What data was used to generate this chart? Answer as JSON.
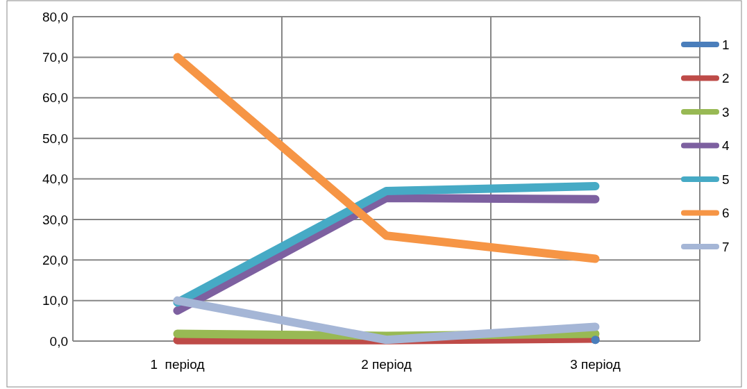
{
  "chart_data": {
    "type": "line",
    "categories": [
      "1  період",
      "2 період",
      "3 період"
    ],
    "series": [
      {
        "name": "1",
        "color": "#4a7ebb",
        "values": [
          null,
          null,
          0.3
        ],
        "marker": "circle"
      },
      {
        "name": "2",
        "color": "#be4b48",
        "values": [
          0.2,
          0.2,
          0.6
        ]
      },
      {
        "name": "3",
        "color": "#98b954",
        "values": [
          1.8,
          1.3,
          1.8
        ]
      },
      {
        "name": "4",
        "color": "#7d60a0",
        "values": [
          7.5,
          35.3,
          35.0
        ]
      },
      {
        "name": "5",
        "color": "#46aac5",
        "values": [
          9.5,
          37.0,
          38.2
        ]
      },
      {
        "name": "6",
        "color": "#f69545",
        "values": [
          70.0,
          26.0,
          20.3
        ]
      },
      {
        "name": "7",
        "color": "#a5b6d6",
        "values": [
          10.0,
          0.3,
          3.5
        ]
      }
    ],
    "ylim": [
      0,
      80
    ],
    "yticks": [
      {
        "value": 0,
        "label": "0,0"
      },
      {
        "value": 10,
        "label": "10,0"
      },
      {
        "value": 20,
        "label": "20,0"
      },
      {
        "value": 30,
        "label": "30,0"
      },
      {
        "value": 40,
        "label": "40,0"
      },
      {
        "value": 50,
        "label": "50,0"
      },
      {
        "value": 60,
        "label": "60,0"
      },
      {
        "value": 70,
        "label": "70,0"
      },
      {
        "value": 80,
        "label": "80,0"
      }
    ],
    "grid": true,
    "legend": "right",
    "marker": "none",
    "line_style": "solid"
  }
}
